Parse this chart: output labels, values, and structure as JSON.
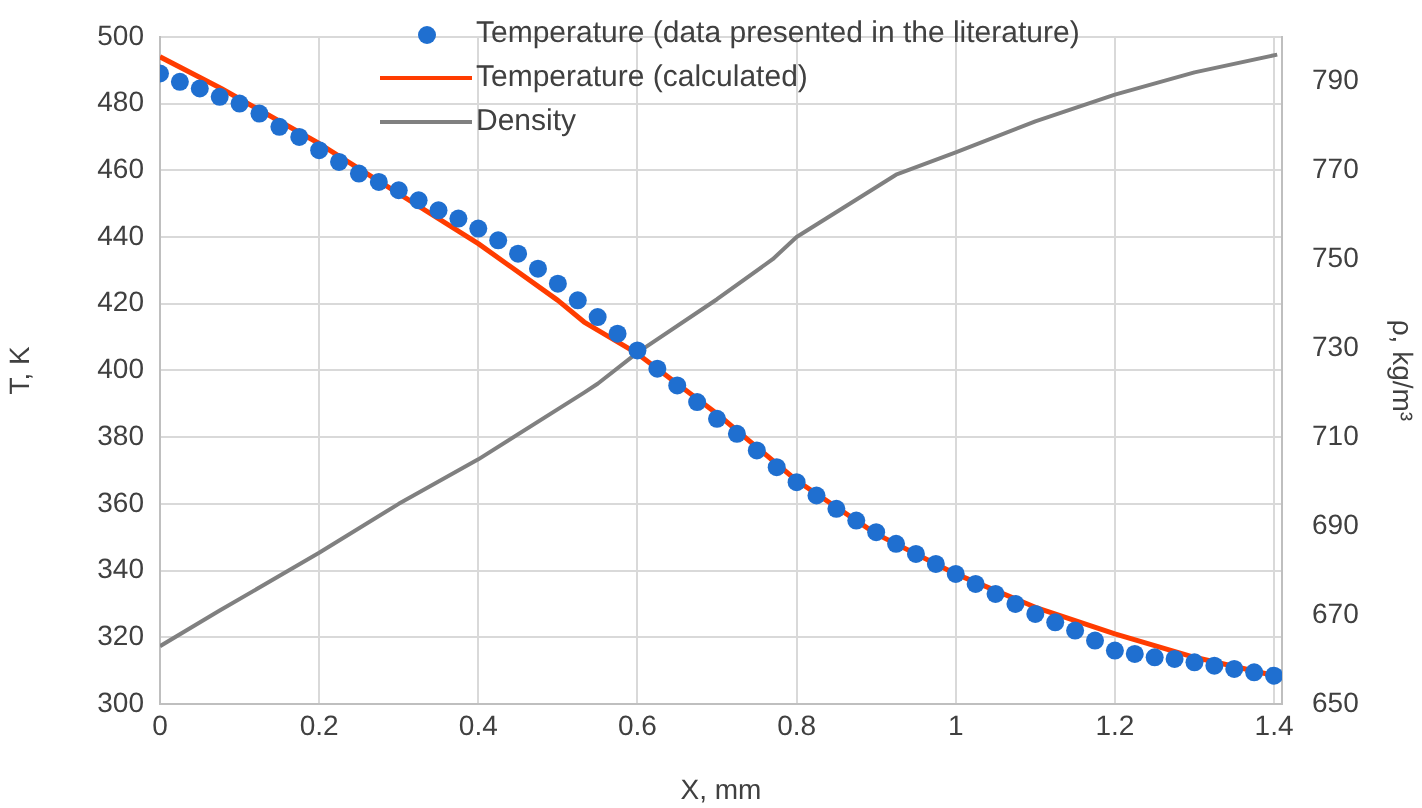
{
  "chart_data": {
    "type": "line",
    "xlabel": "X, mm",
    "ylabel": "T, K",
    "y2label": "ρ, kg/m³",
    "xlim": [
      0,
      1.41
    ],
    "xticks": [
      0,
      0.2,
      0.4,
      0.6,
      0.8,
      1,
      1.2,
      1.4
    ],
    "ylim": [
      300,
      500
    ],
    "yticks": [
      300,
      320,
      340,
      360,
      380,
      400,
      420,
      440,
      460,
      480,
      500
    ],
    "y2lim": [
      650,
      800
    ],
    "y2ticks": [
      650,
      670,
      690,
      710,
      730,
      750,
      770,
      790
    ],
    "grid": true,
    "legend": "top",
    "series": [
      {
        "name": "Temperature (data presented in the literature)",
        "type": "scatter",
        "marker": "circle",
        "color": "#1f6fd0",
        "x": [
          0,
          0.025,
          0.05,
          0.075,
          0.1,
          0.125,
          0.15,
          0.175,
          0.2,
          0.225,
          0.25,
          0.275,
          0.3,
          0.325,
          0.35,
          0.375,
          0.4,
          0.425,
          0.45,
          0.475,
          0.5,
          0.525,
          0.55,
          0.575,
          0.6,
          0.625,
          0.65,
          0.675,
          0.7,
          0.725,
          0.75,
          0.775,
          0.8,
          0.825,
          0.85,
          0.875,
          0.9,
          0.925,
          0.95,
          0.975,
          1,
          1.025,
          1.05,
          1.075,
          1.1,
          1.125,
          1.15,
          1.175,
          1.2,
          1.225,
          1.25,
          1.275,
          1.3,
          1.325,
          1.35,
          1.375,
          1.4
        ],
        "values": [
          489,
          486.5,
          484.5,
          482,
          480,
          477,
          473,
          470,
          466,
          462.5,
          459,
          456.5,
          454,
          451,
          448,
          445.5,
          442.5,
          439,
          435,
          430.5,
          426,
          421,
          416,
          411,
          406,
          400.5,
          395.5,
          390.5,
          385.5,
          381,
          376,
          371,
          366.5,
          362.5,
          358.5,
          355,
          351.5,
          348,
          345,
          342,
          339,
          336,
          333,
          330,
          327,
          324.5,
          322,
          319,
          316,
          315,
          314,
          313.5,
          312.5,
          311.5,
          310.5,
          309.5,
          308.5
        ]
      },
      {
        "name": "Temperature (calculated)",
        "marker": "none",
        "color": "#ff3c00",
        "x": [
          0,
          0.077,
          0.2,
          0.3,
          0.4,
          0.5,
          0.533,
          0.6,
          0.7,
          0.8,
          0.9,
          1,
          1.1,
          1.2,
          1.3,
          1.4
        ],
        "values": [
          494,
          484.5,
          468,
          453,
          438,
          421,
          414.5,
          405,
          387,
          367,
          351,
          339,
          329,
          321,
          314,
          308.5
        ]
      },
      {
        "name": "Density",
        "marker": "none",
        "color": "#808080",
        "axis": "y2",
        "x": [
          0,
          0.075,
          0.2,
          0.3,
          0.4,
          0.533,
          0.55,
          0.6,
          0.7,
          0.77,
          0.8,
          0.925,
          1,
          1.1,
          1.2,
          1.3,
          1.404
        ],
        "values": [
          663,
          671,
          684,
          695,
          705,
          720,
          722,
          729,
          741,
          750,
          755,
          769,
          774,
          781,
          787,
          792,
          796
        ]
      }
    ]
  }
}
